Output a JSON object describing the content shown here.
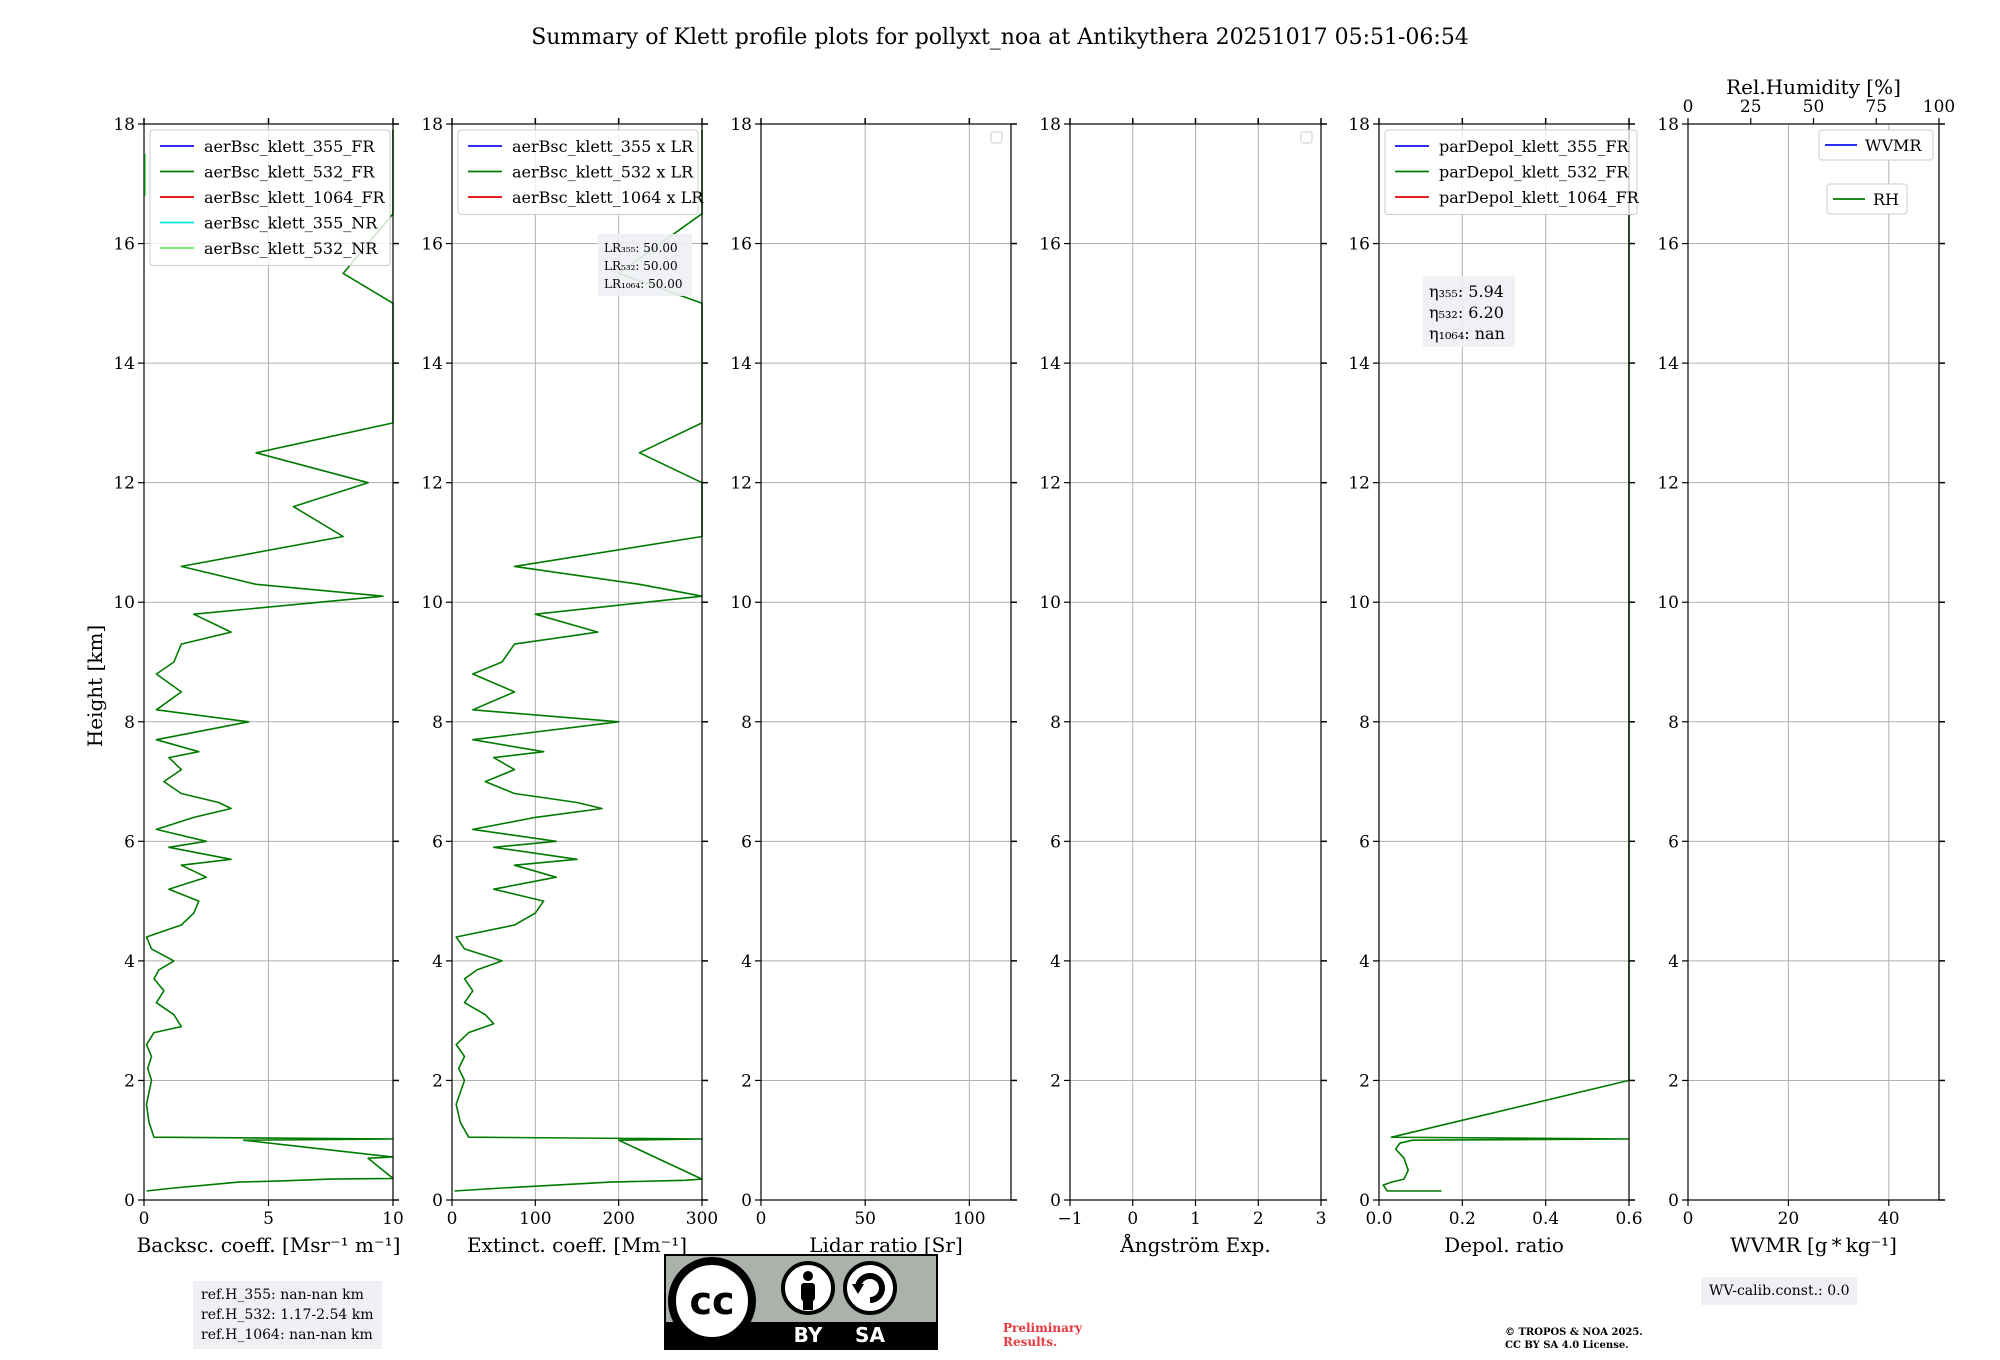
{
  "title": "Summary of Klett profile plots for pollyxt_noa at Antikythera 20251017 05:51-06:54",
  "y_axis_label": "Height [km]",
  "colors": {
    "blue": "#1010ee",
    "green": "#007a00",
    "red": "#e00000",
    "cyan": "#00e5e5",
    "lightgreen": "#66ee66",
    "grid": "#b0b0b0",
    "prelim": "#e8383d"
  },
  "chart_data": [
    {
      "type": "line",
      "name": "backscatter",
      "xlabel": "Backsc. coeff. [Msr⁻¹ m⁻¹]",
      "xlim": [
        0,
        10
      ],
      "ylim": [
        0,
        18
      ],
      "xticks": [
        "0",
        "5",
        "10"
      ],
      "xtick_values": [
        0,
        5,
        10
      ],
      "legend": [
        "aerBsc_klett_355_FR",
        "aerBsc_klett_532_FR",
        "aerBsc_klett_1064_FR",
        "aerBsc_klett_355_NR",
        "aerBsc_klett_532_NR"
      ],
      "legend_colors": [
        "blue",
        "green",
        "red",
        "cyan",
        "lightgreen"
      ],
      "series": [
        {
          "name": "aerBsc_klett_532_FR",
          "color": "green",
          "points": [
            [
              0.1,
              0.15
            ],
            [
              1.2,
              0.2
            ],
            [
              2.5,
              0.25
            ],
            [
              3.8,
              0.3
            ],
            [
              5.5,
              0.32
            ],
            [
              7.5,
              0.35
            ],
            [
              10,
              0.36
            ],
            [
              9,
              0.7
            ],
            [
              10,
              0.72
            ],
            [
              4,
              1.0
            ],
            [
              10,
              1.02
            ],
            [
              0.4,
              1.05
            ],
            [
              0.2,
              1.3
            ],
            [
              0.1,
              1.6
            ],
            [
              0.2,
              1.8
            ],
            [
              0.3,
              2.0
            ],
            [
              0.15,
              2.2
            ],
            [
              0.3,
              2.4
            ],
            [
              0.1,
              2.6
            ],
            [
              0.4,
              2.8
            ],
            [
              1.5,
              2.9
            ],
            [
              1.2,
              3.1
            ],
            [
              0.5,
              3.3
            ],
            [
              0.8,
              3.5
            ],
            [
              0.4,
              3.7
            ],
            [
              0.6,
              3.85
            ],
            [
              1.2,
              4.0
            ],
            [
              0.3,
              4.2
            ],
            [
              0.1,
              4.4
            ],
            [
              1.5,
              4.6
            ],
            [
              2.0,
              4.8
            ],
            [
              2.2,
              5.0
            ],
            [
              1.0,
              5.2
            ],
            [
              2.5,
              5.4
            ],
            [
              1.5,
              5.6
            ],
            [
              3.5,
              5.7
            ],
            [
              1.0,
              5.9
            ],
            [
              2.5,
              6.0
            ],
            [
              0.5,
              6.2
            ],
            [
              2.0,
              6.4
            ],
            [
              3.5,
              6.55
            ],
            [
              3.0,
              6.65
            ],
            [
              1.5,
              6.8
            ],
            [
              0.8,
              7.0
            ],
            [
              1.5,
              7.2
            ],
            [
              1.0,
              7.4
            ],
            [
              2.2,
              7.5
            ],
            [
              0.5,
              7.7
            ],
            [
              4.2,
              8.0
            ],
            [
              0.5,
              8.2
            ],
            [
              1.5,
              8.5
            ],
            [
              0.5,
              8.8
            ],
            [
              1.2,
              9.0
            ],
            [
              1.5,
              9.3
            ],
            [
              3.5,
              9.5
            ],
            [
              2.0,
              9.8
            ],
            [
              9.6,
              10.1
            ],
            [
              4.5,
              10.3
            ],
            [
              1.5,
              10.6
            ],
            [
              8.0,
              11.1
            ],
            [
              6.0,
              11.6
            ],
            [
              9.0,
              12.0
            ],
            [
              4.5,
              12.5
            ],
            [
              10,
              13.0
            ],
            [
              10,
              13.5
            ],
            [
              10,
              14.0
            ],
            [
              10,
              14.5
            ],
            [
              10,
              15.0
            ],
            [
              8.0,
              15.5
            ],
            [
              10,
              16.5
            ],
            [
              10,
              17.0
            ],
            [
              10,
              17.5
            ],
            [
              10,
              17.9
            ]
          ]
        },
        {
          "name": "aerBsc_klett_532_NR",
          "color": "lightgreen",
          "points": [
            [
              0.05,
              16.8
            ],
            [
              0.05,
              17.5
            ]
          ]
        }
      ]
    },
    {
      "type": "line",
      "name": "extinction",
      "xlabel": "Extinct. coeff. [Mm⁻¹]",
      "xlim": [
        0,
        300
      ],
      "ylim": [
        0,
        18
      ],
      "xticks": [
        "0",
        "100",
        "200",
        "300"
      ],
      "xtick_values": [
        0,
        100,
        200,
        300
      ],
      "legend": [
        "aerBsc_klett_355 x LR",
        "aerBsc_klett_532 x LR",
        "aerBsc_klett_1064 x LR"
      ],
      "legend_colors": [
        "blue",
        "green",
        "red"
      ],
      "annotation": [
        "LR₃₅₅: 50.00",
        "LR₅₃₂: 50.00",
        "LR₁₀₆₄: 50.00"
      ],
      "series": [
        {
          "name": "aerBsc_klett_532 x LR",
          "color": "green",
          "points": [
            [
              3,
              0.15
            ],
            [
              60,
              0.2
            ],
            [
              125,
              0.25
            ],
            [
              190,
              0.3
            ],
            [
              280,
              0.33
            ],
            [
              300,
              0.35
            ],
            [
              200,
              1.0
            ],
            [
              300,
              1.02
            ],
            [
              20,
              1.05
            ],
            [
              10,
              1.3
            ],
            [
              5,
              1.6
            ],
            [
              10,
              1.8
            ],
            [
              15,
              2.0
            ],
            [
              8,
              2.2
            ],
            [
              15,
              2.4
            ],
            [
              5,
              2.6
            ],
            [
              20,
              2.8
            ],
            [
              50,
              2.95
            ],
            [
              40,
              3.1
            ],
            [
              15,
              3.3
            ],
            [
              25,
              3.5
            ],
            [
              15,
              3.7
            ],
            [
              30,
              3.85
            ],
            [
              60,
              4.0
            ],
            [
              15,
              4.2
            ],
            [
              5,
              4.4
            ],
            [
              75,
              4.6
            ],
            [
              100,
              4.8
            ],
            [
              110,
              5.0
            ],
            [
              50,
              5.2
            ],
            [
              125,
              5.4
            ],
            [
              75,
              5.6
            ],
            [
              150,
              5.7
            ],
            [
              50,
              5.9
            ],
            [
              125,
              6.0
            ],
            [
              25,
              6.2
            ],
            [
              100,
              6.4
            ],
            [
              180,
              6.55
            ],
            [
              150,
              6.65
            ],
            [
              75,
              6.8
            ],
            [
              40,
              7.0
            ],
            [
              75,
              7.2
            ],
            [
              50,
              7.4
            ],
            [
              110,
              7.5
            ],
            [
              25,
              7.7
            ],
            [
              200,
              8.0
            ],
            [
              25,
              8.2
            ],
            [
              75,
              8.5
            ],
            [
              25,
              8.8
            ],
            [
              60,
              9.0
            ],
            [
              75,
              9.3
            ],
            [
              175,
              9.5
            ],
            [
              100,
              9.8
            ],
            [
              300,
              10.1
            ],
            [
              225,
              10.3
            ],
            [
              75,
              10.6
            ],
            [
              300,
              11.1
            ],
            [
              300,
              11.6
            ],
            [
              300,
              12.0
            ],
            [
              225,
              12.5
            ],
            [
              300,
              13.0
            ],
            [
              300,
              13.5
            ],
            [
              300,
              14.0
            ],
            [
              300,
              14.5
            ],
            [
              300,
              15.0
            ],
            [
              200,
              15.5
            ],
            [
              300,
              16.5
            ],
            [
              300,
              17.0
            ],
            [
              300,
              17.5
            ],
            [
              300,
              17.9
            ]
          ]
        }
      ]
    },
    {
      "type": "line",
      "name": "lidar-ratio",
      "xlabel": "Lidar ratio [Sr]",
      "xlim": [
        0,
        120
      ],
      "ylim": [
        0,
        18
      ],
      "xticks": [
        "0",
        "50",
        "100"
      ],
      "xtick_values": [
        0,
        50,
        100
      ],
      "legend": [],
      "series": []
    },
    {
      "type": "line",
      "name": "angstrom",
      "xlabel": "Ångström Exp.",
      "xlim": [
        -1,
        3
      ],
      "ylim": [
        0,
        18
      ],
      "xticks": [
        "−1",
        "0",
        "1",
        "2",
        "3"
      ],
      "xtick_values": [
        -1,
        0,
        1,
        2,
        3
      ],
      "legend": [],
      "series": []
    },
    {
      "type": "line",
      "name": "depol",
      "xlabel": "Depol. ratio",
      "xlim": [
        0,
        0.6
      ],
      "ylim": [
        0,
        18
      ],
      "xticks": [
        "0.0",
        "0.2",
        "0.4",
        "0.6"
      ],
      "xtick_values": [
        0,
        0.2,
        0.4,
        0.6
      ],
      "legend": [
        "parDepol_klett_355_FR",
        "parDepol_klett_532_FR",
        "parDepol_klett_1064_FR"
      ],
      "legend_colors": [
        "blue",
        "green",
        "red"
      ],
      "annotation": [
        "η₃₅₅: 5.94",
        "η₅₃₂: 6.20",
        "η₁₀₆₄: nan"
      ],
      "series": [
        {
          "name": "parDepol_klett_532_FR",
          "color": "green",
          "points": [
            [
              0.15,
              0.15
            ],
            [
              0.02,
              0.15
            ],
            [
              0.01,
              0.25
            ],
            [
              0.03,
              0.3
            ],
            [
              0.06,
              0.35
            ],
            [
              0.07,
              0.5
            ],
            [
              0.06,
              0.7
            ],
            [
              0.04,
              0.85
            ],
            [
              0.05,
              0.95
            ],
            [
              0.08,
              1.0
            ],
            [
              0.6,
              1.02
            ],
            [
              0.03,
              1.05
            ],
            [
              0.6,
              2.0
            ],
            [
              0.6,
              2.5
            ],
            [
              0.6,
              3.0
            ],
            [
              0.6,
              3.5
            ],
            [
              0.6,
              4.0
            ],
            [
              0.6,
              4.5
            ],
            [
              0.6,
              5.0
            ],
            [
              0.6,
              5.5
            ],
            [
              0.6,
              6.0
            ],
            [
              0.6,
              6.5
            ],
            [
              0.6,
              7.0
            ],
            [
              0.6,
              7.5
            ],
            [
              0.6,
              8.5
            ],
            [
              0.6,
              9.0
            ],
            [
              0.6,
              9.7
            ],
            [
              0.6,
              10.0
            ],
            [
              0.6,
              10.5
            ],
            [
              0.6,
              11.0
            ],
            [
              0.6,
              11.5
            ],
            [
              0.6,
              12.0
            ],
            [
              0.6,
              12.5
            ],
            [
              0.6,
              13.0
            ],
            [
              0.6,
              13.5
            ],
            [
              0.6,
              14.0
            ],
            [
              0.6,
              14.5
            ],
            [
              0.6,
              15.0
            ],
            [
              0.6,
              15.5
            ],
            [
              0.6,
              16.5
            ],
            [
              0.6,
              17.0
            ],
            [
              0.6,
              17.5
            ],
            [
              0.6,
              17.9
            ]
          ]
        }
      ]
    },
    {
      "type": "line",
      "name": "wvmr",
      "xlabel": "WVMR [g * kg⁻¹]",
      "xlim": [
        0,
        50
      ],
      "ylim": [
        0,
        18
      ],
      "xticks": [
        "0",
        "20",
        "40"
      ],
      "xtick_values": [
        0,
        20,
        40
      ],
      "top_label": "Rel.Humidity [%]",
      "top_xlim": [
        0,
        100
      ],
      "top_ticks": [
        "0",
        "25",
        "50",
        "75",
        "100"
      ],
      "top_tick_values": [
        0,
        25,
        50,
        75,
        100
      ],
      "legend": [
        "WVMR",
        "RH"
      ],
      "legend_colors": [
        "blue",
        "green"
      ],
      "series": []
    }
  ],
  "yticks": [
    "0",
    "2",
    "4",
    "6",
    "8",
    "10",
    "12",
    "14",
    "16",
    "18"
  ],
  "ytick_values": [
    0,
    2,
    4,
    6,
    8,
    10,
    12,
    14,
    16,
    18
  ],
  "footer": {
    "ref_heights": [
      "ref.H_355: nan-nan km",
      "ref.H_532: 1.17-2.54 km",
      "ref.H_1064: nan-nan km"
    ],
    "cc_label_by": "BY",
    "cc_label_sa": "SA",
    "cc_label_cc": "cc",
    "preliminary": [
      "Preliminary",
      "Results."
    ],
    "copyright": [
      "© TROPOS & NOA 2025.",
      "CC BY SA 4.0 License."
    ],
    "wv_calib": "WV-calib.const.: 0.0"
  }
}
